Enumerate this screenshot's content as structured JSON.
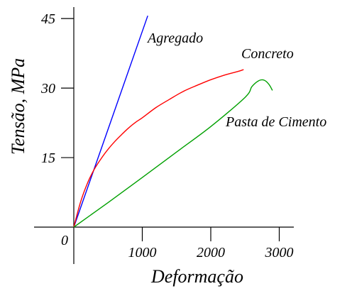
{
  "chart_data": {
    "type": "line",
    "title": "",
    "xlabel": "Deformação",
    "ylabel": "Tensão, MPa",
    "xlim": [
      0,
      3000
    ],
    "ylim": [
      0,
      45
    ],
    "grid": false,
    "legend": "none (series labeled inline next to curves)",
    "origin_label": "0",
    "x_ticks": [
      {
        "value": 1000,
        "label": "1000"
      },
      {
        "value": 2000,
        "label": "2000"
      },
      {
        "value": 3000,
        "label": "3000"
      }
    ],
    "y_ticks": [
      {
        "value": 15,
        "label": "15"
      },
      {
        "value": 30,
        "label": "30"
      },
      {
        "value": 45,
        "label": "45"
      }
    ],
    "series": [
      {
        "name": "Agregado",
        "color": "#0000ff",
        "x": [
          0,
          1080
        ],
        "y": [
          0,
          45.6
        ]
      },
      {
        "name": "Concreto",
        "color": "#ff0000",
        "x": [
          0,
          100,
          200,
          300,
          400,
          500,
          600,
          700,
          800,
          900,
          1000,
          1200,
          1400,
          1600,
          1800,
          2000,
          2200,
          2400,
          2480
        ],
        "y": [
          0,
          5.5,
          9.5,
          12.5,
          14.8,
          16.8,
          18.5,
          20.0,
          21.4,
          22.6,
          23.6,
          25.8,
          27.6,
          29.3,
          30.6,
          31.8,
          32.8,
          33.6,
          34.0
        ]
      },
      {
        "name": "Pasta de Cimento",
        "color": "#00a000",
        "x": [
          0,
          500,
          1000,
          1500,
          2000,
          2500,
          2600,
          2700,
          2780,
          2850,
          2900
        ],
        "y": [
          0,
          5.3,
          10.7,
          16.2,
          21.7,
          28.0,
          30.3,
          31.6,
          31.7,
          30.8,
          29.5
        ]
      }
    ]
  }
}
